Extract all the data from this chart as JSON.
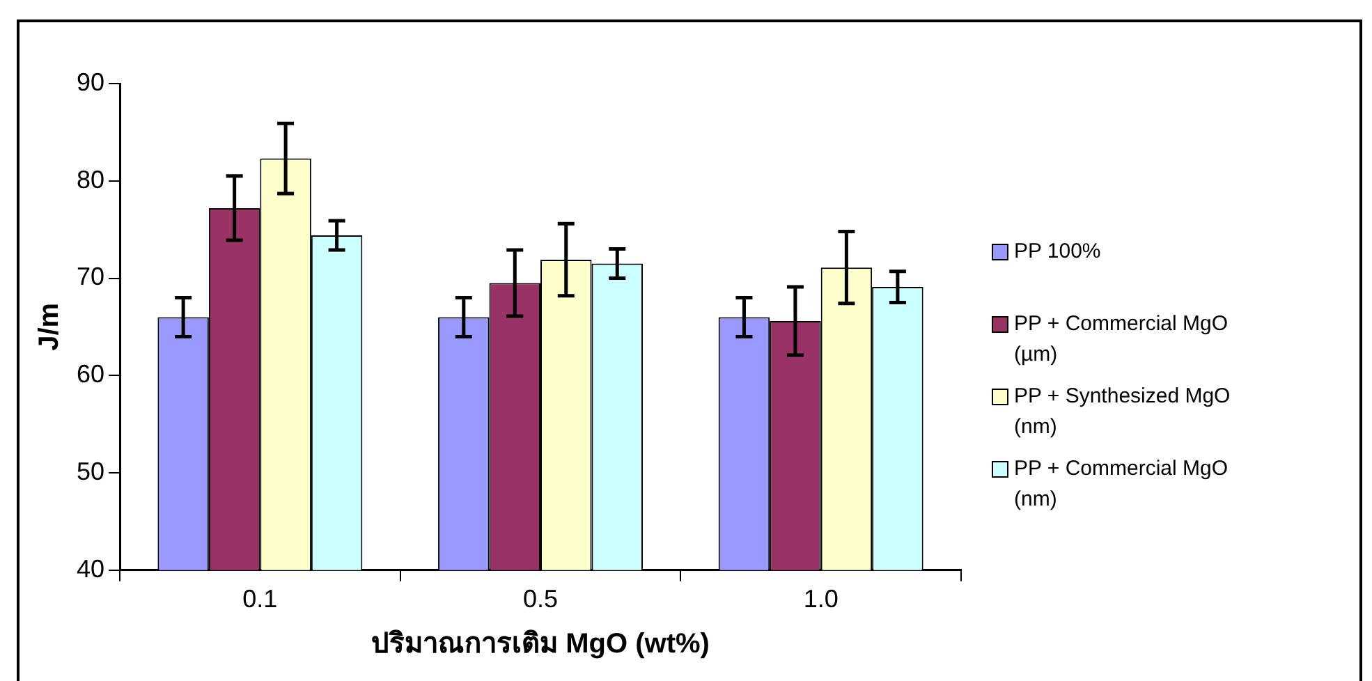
{
  "chart_data": {
    "type": "bar",
    "xlabel": "ปริมาณการเติม MgO (wt%)",
    "ylabel": "J/m",
    "categories": [
      "0.1",
      "0.5",
      "1.0"
    ],
    "series": [
      {
        "name": "PP 100%",
        "color": "#9999ff",
        "values": [
          66.0,
          66.0,
          66.0
        ],
        "errors": [
          2.0,
          2.0,
          2.0
        ]
      },
      {
        "name": "PP + Commercial MgO (µm)",
        "color": "#993366",
        "values": [
          77.2,
          69.5,
          65.6
        ],
        "errors": [
          3.3,
          3.4,
          3.5
        ]
      },
      {
        "name": "PP + Synthesized MgO (nm)",
        "color": "#ffffcc",
        "values": [
          82.3,
          71.9,
          71.1
        ],
        "errors": [
          3.6,
          3.7,
          3.7
        ]
      },
      {
        "name": "PP + Commercial MgO (nm)",
        "color": "#ccffff",
        "values": [
          74.4,
          71.5,
          69.1
        ],
        "errors": [
          1.5,
          1.5,
          1.6
        ]
      }
    ],
    "ylim": [
      40,
      90
    ],
    "yticks": [
      40,
      50,
      60,
      70,
      80,
      90
    ],
    "grid": false,
    "legend": "right"
  }
}
